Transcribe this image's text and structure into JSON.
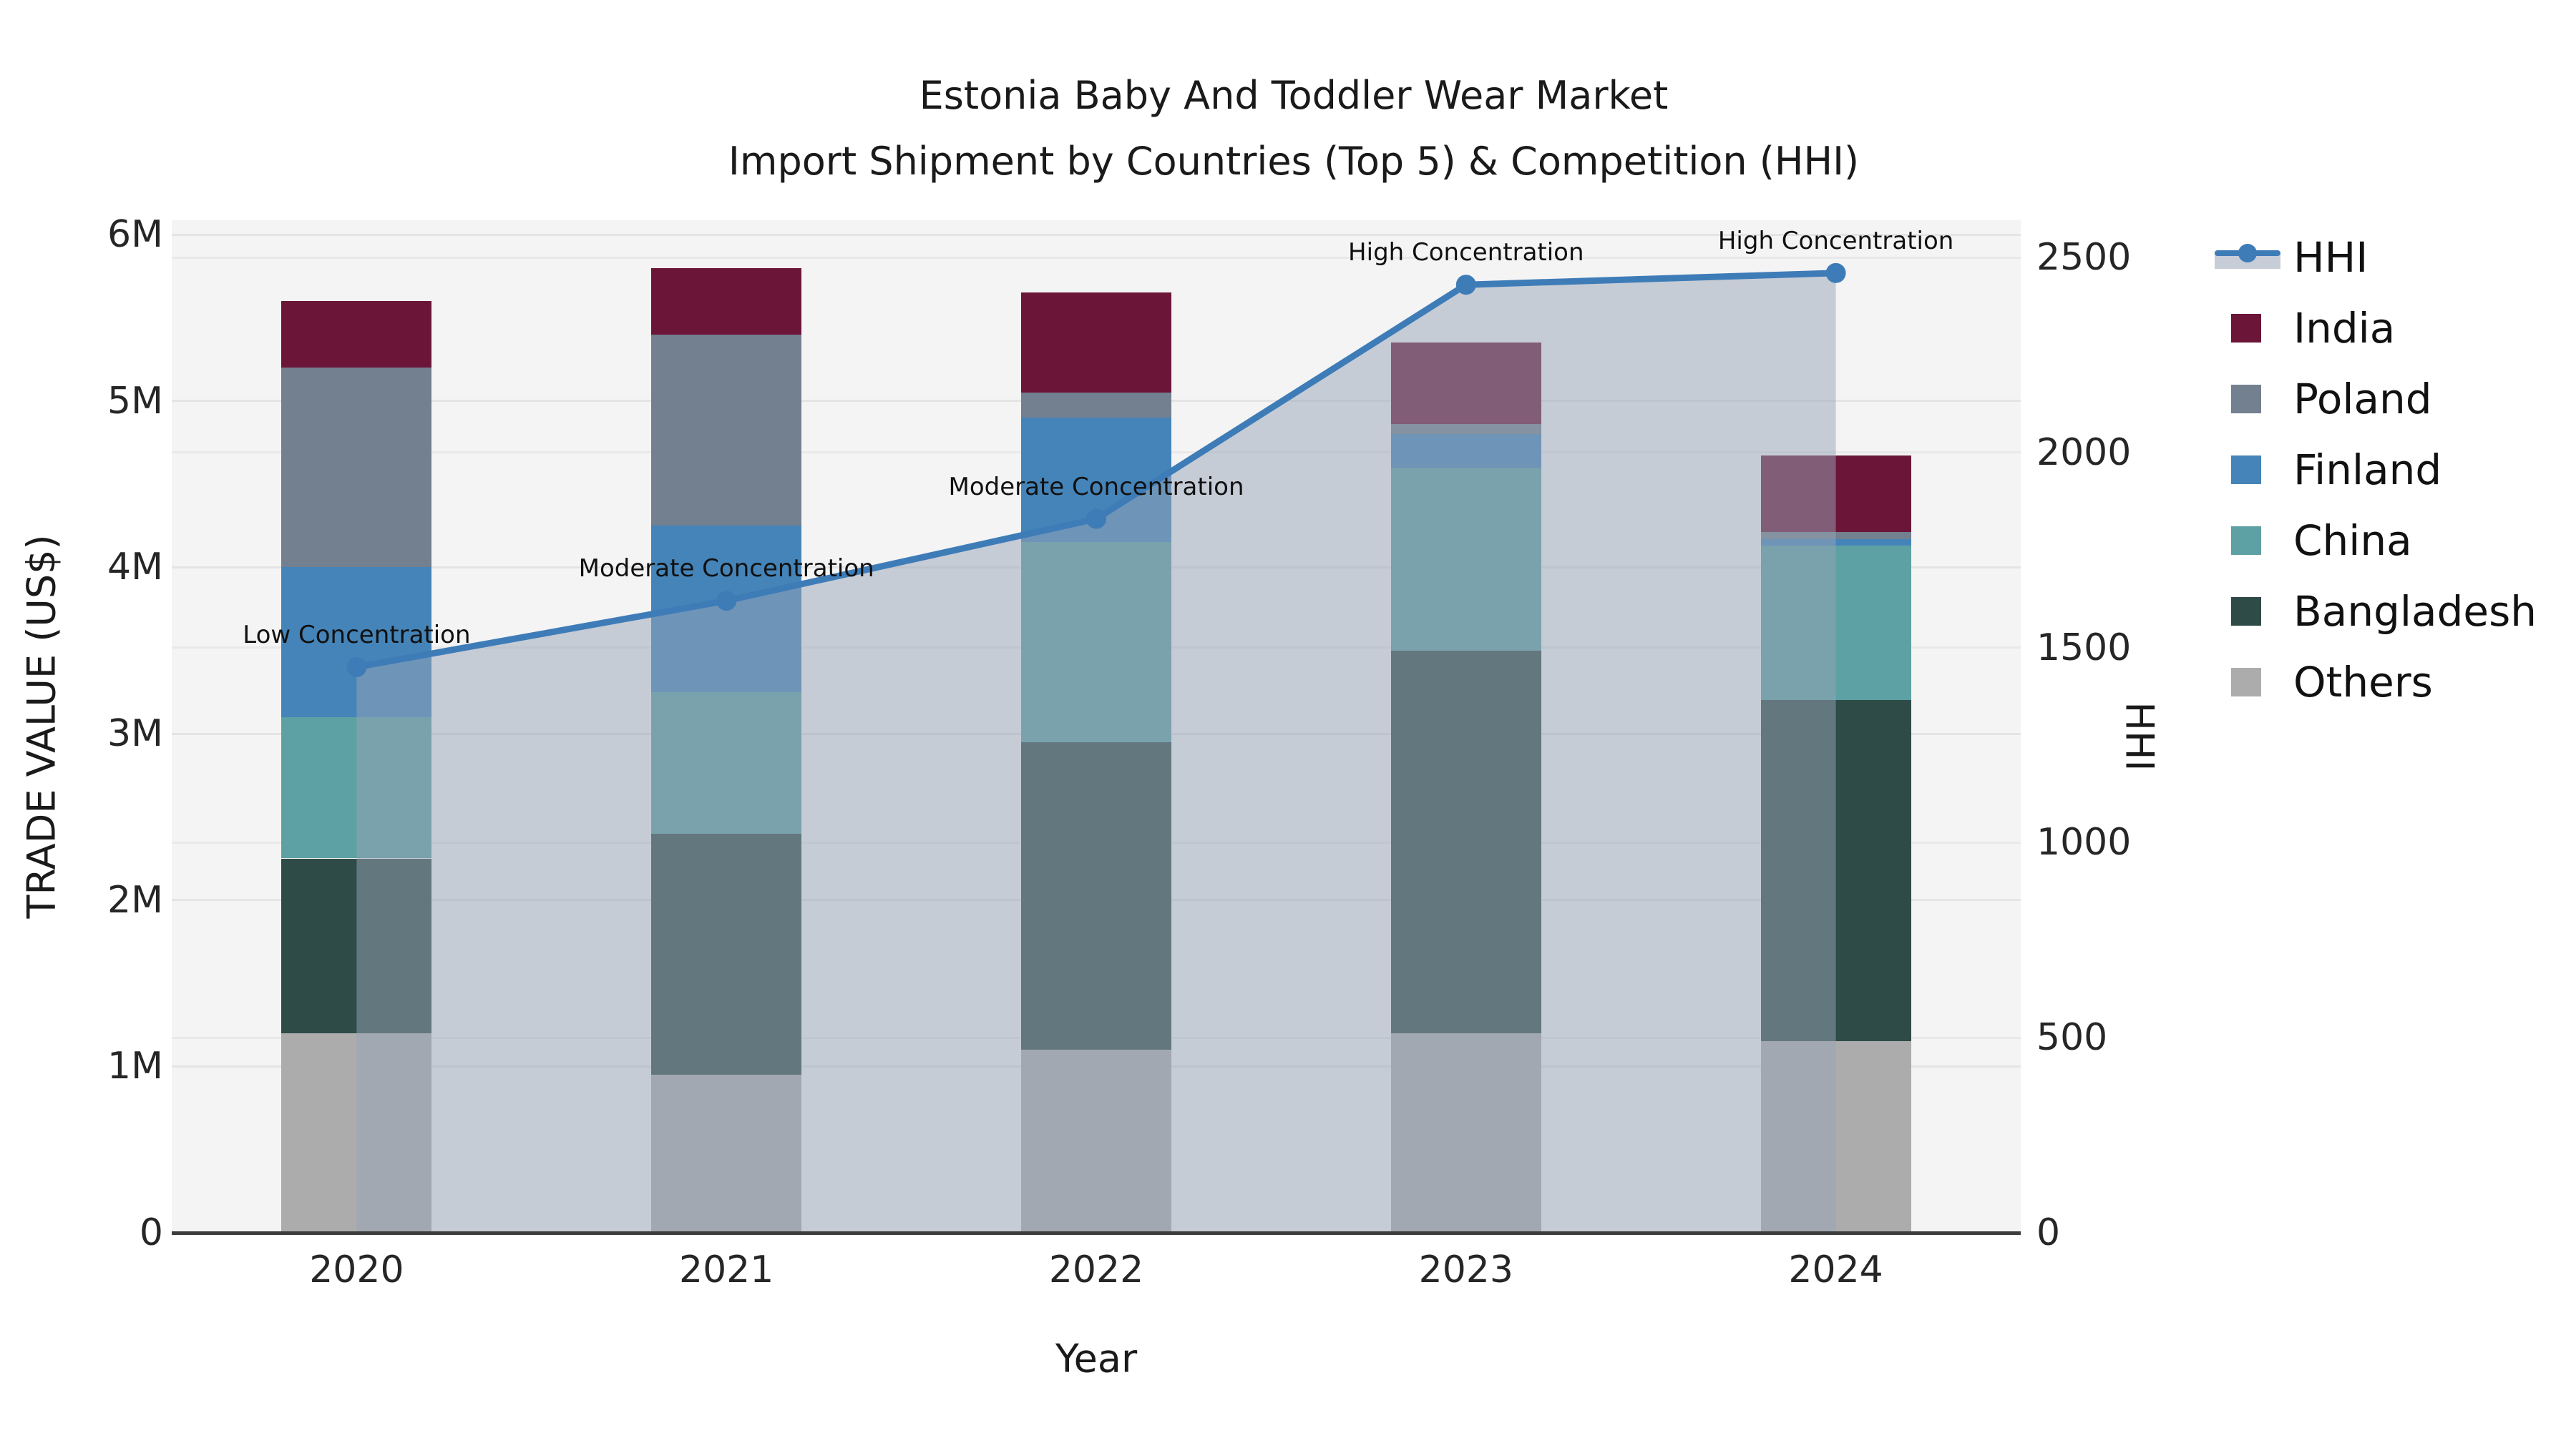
{
  "chart_data": {
    "type": "combo_stacked_bar_line",
    "title": "Estonia Baby And Toddler Wear Market",
    "subtitle": "Import Shipment by Countries (Top 5) & Competition (HHI)",
    "xlabel": "Year",
    "ylabel_left": "TRADE VALUE (US$)",
    "ylabel_right": "HHI",
    "unit_left": "US$ millions",
    "categories": [
      "2020",
      "2021",
      "2022",
      "2023",
      "2024"
    ],
    "bar_series": [
      {
        "name": "India",
        "color": "#6b1638",
        "values": [
          0.4,
          0.4,
          0.6,
          0.49,
          0.46
        ]
      },
      {
        "name": "Poland",
        "color": "#72808f",
        "values": [
          1.2,
          1.15,
          0.15,
          0.06,
          0.04
        ]
      },
      {
        "name": "Finland",
        "color": "#4584b8",
        "values": [
          0.9,
          1.0,
          0.75,
          0.2,
          0.04
        ]
      },
      {
        "name": "China",
        "color": "#5da1a4",
        "values": [
          0.85,
          0.85,
          1.2,
          1.1,
          0.93
        ]
      },
      {
        "name": "Bangladesh",
        "color": "#2e4b48",
        "values": [
          1.05,
          1.45,
          1.85,
          2.3,
          2.05
        ]
      },
      {
        "name": "Others",
        "color": "#acacac",
        "values": [
          1.2,
          0.95,
          1.1,
          1.2,
          1.15
        ]
      }
    ],
    "bar_totals_millions": [
      5.6,
      5.8,
      5.65,
      5.35,
      4.67
    ],
    "line_series": {
      "name": "HHI",
      "color": "#3e7cb8",
      "area_fill": "rgba(152,164,182,0.5)",
      "values": [
        1450,
        1620,
        1830,
        2430,
        2460
      ]
    },
    "annotations": [
      {
        "category": "2020",
        "text": "Low Concentration",
        "hhi": 1450
      },
      {
        "category": "2021",
        "text": "Moderate Concentration",
        "hhi": 1620
      },
      {
        "category": "2022",
        "text": "Moderate Concentration",
        "hhi": 1830
      },
      {
        "category": "2023",
        "text": "High Concentration",
        "hhi": 2430
      },
      {
        "category": "2024",
        "text": "High Concentration",
        "hhi": 2460
      }
    ],
    "yticks_left": [
      {
        "v": 0,
        "label": "0"
      },
      {
        "v": 1,
        "label": "1M"
      },
      {
        "v": 2,
        "label": "2M"
      },
      {
        "v": 3,
        "label": "3M"
      },
      {
        "v": 4,
        "label": "4M"
      },
      {
        "v": 5,
        "label": "5M"
      },
      {
        "v": 6,
        "label": "6M"
      }
    ],
    "yticks_right": [
      {
        "v": 0,
        "label": "0"
      },
      {
        "v": 500,
        "label": "500"
      },
      {
        "v": 1000,
        "label": "1000"
      },
      {
        "v": 1500,
        "label": "1500"
      },
      {
        "v": 2000,
        "label": "2000"
      },
      {
        "v": 2500,
        "label": "2500"
      }
    ],
    "ylim_left_millions": [
      0,
      6.08
    ],
    "ylim_right": [
      0,
      2600
    ],
    "grid": true,
    "legend_position": "right",
    "legend": [
      {
        "label": "HHI",
        "type": "line"
      },
      {
        "label": "India",
        "type": "patch"
      },
      {
        "label": "Poland",
        "type": "patch"
      },
      {
        "label": "Finland",
        "type": "patch"
      },
      {
        "label": "China",
        "type": "patch"
      },
      {
        "label": "Bangladesh",
        "type": "patch"
      },
      {
        "label": "Others",
        "type": "patch"
      }
    ]
  },
  "style": {
    "plot_bg": "#f4f4f4",
    "grid_color_left": "#e4e4e4",
    "grid_color_right": "#e9e9e9",
    "axis_line_color": "#3d3d3d",
    "text_color": "#1a1a1a"
  }
}
